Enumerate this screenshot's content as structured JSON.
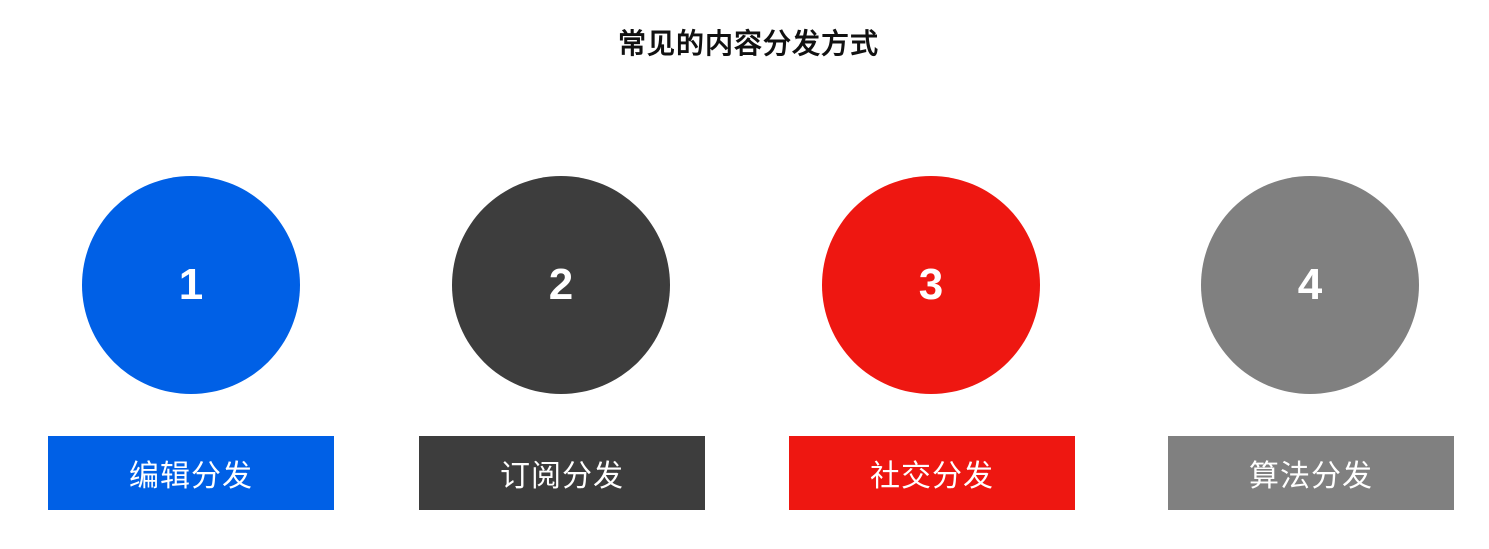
{
  "title": "常见的内容分发方式",
  "items": [
    {
      "number": "1",
      "label": "编辑分发",
      "color": "#0060E6"
    },
    {
      "number": "2",
      "label": "订阅分发",
      "color": "#3D3D3D"
    },
    {
      "number": "3",
      "label": "社交分发",
      "color": "#EE1711"
    },
    {
      "number": "4",
      "label": "算法分发",
      "color": "#808080"
    }
  ]
}
